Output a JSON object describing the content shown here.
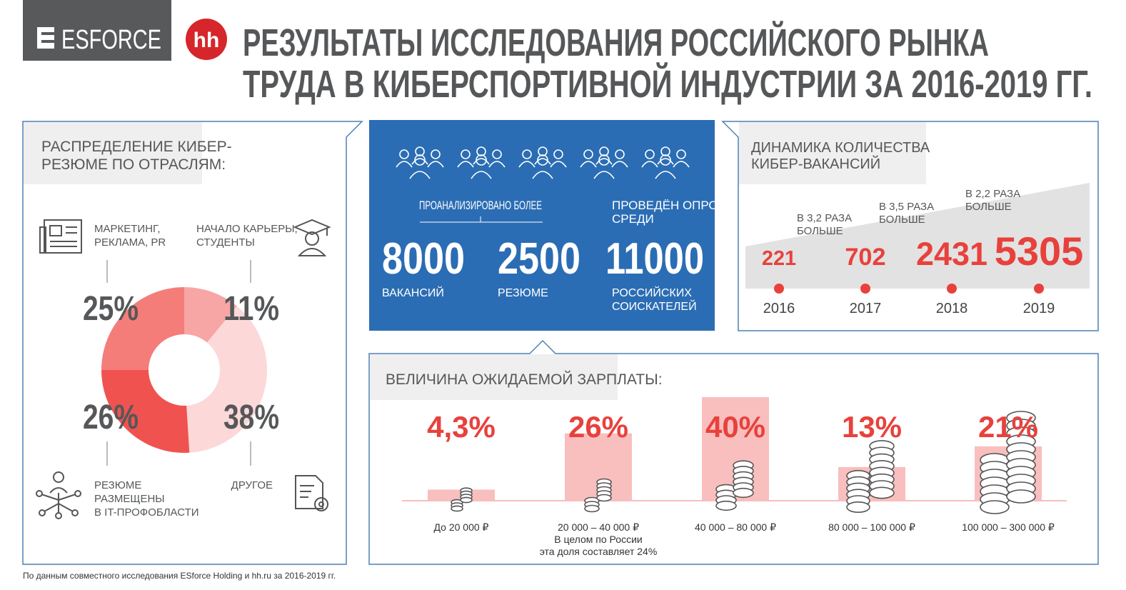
{
  "header": {
    "logo": "ESFORCE",
    "badge": "hh",
    "title": [
      "РЕЗУЛЬТАТЫ ИССЛЕДОВАНИЯ РОССИЙСКОГО РЫНКА",
      "ТРУДА В КИБЕРСПОРТИВНОЙ ИНДУСТРИИ ЗА 2016-2019 ГГ."
    ]
  },
  "summary": {
    "analyzed": "ПРОАНАЛИЗИРОВАНО БОЛЕЕ",
    "surveyed": [
      "ПРОВЕДЁН ОПРОС",
      "СРЕДИ"
    ],
    "stats": [
      {
        "value": 8000,
        "label": [
          "ВАКАНСИЙ"
        ]
      },
      {
        "value": 2500,
        "label": [
          "РЕЗЮМЕ"
        ]
      },
      {
        "value": 11000,
        "label": [
          "РОССИЙСКИХ",
          "СОИСКАТЕЛЕЙ"
        ]
      }
    ]
  },
  "chart_data": [
    {
      "type": "pie",
      "title": [
        "РАСПРЕДЕЛЕНИЕ КИБЕР-",
        "РЕЗЮМЕ ПО ОТРАСЛЯМ:"
      ],
      "categories": [
        [
          "НАЧАЛО КАРЬЕРЫ,",
          "СТУДЕНТЫ"
        ],
        [
          "ДРУГОЕ"
        ],
        [
          "РЕЗЮМЕ",
          "РАЗМЕЩЕНЫ",
          "В IT-ПРОФОБЛАСТИ"
        ],
        [
          "МАРКЕТИНГ,",
          "РЕКЛАМА, PR"
        ]
      ],
      "values": [
        11,
        38,
        26,
        25
      ],
      "value_labels": [
        "11%",
        "38%",
        "26%",
        "25%"
      ],
      "colors": [
        "#f7a5a5",
        "#fdd8d8",
        "#f0534f",
        "#f47d7a"
      ]
    },
    {
      "type": "timeline",
      "title": [
        "ДИНАМИКА КОЛИЧЕСТВА",
        "КИБЕР-ВАКАНСИЙ"
      ],
      "categories": [
        "2016",
        "2017",
        "2018",
        "2019"
      ],
      "values": [
        221,
        702,
        2431,
        5305
      ],
      "annotations": [
        [
          "В 3,2 РАЗА",
          "БОЛЬШЕ"
        ],
        [
          "В 3,5 РАЗА",
          "БОЛЬШЕ"
        ],
        [
          "В 2,2 РАЗА",
          "БОЛЬШЕ"
        ]
      ],
      "color": "#e8413c"
    },
    {
      "type": "bar",
      "title": "ВЕЛИЧИНА ОЖИДАЕМОЙ ЗАРПЛАТЫ:",
      "categories": [
        "До 20 000 ₽",
        "20 000 – 40 000 ₽",
        "40 000 – 80 000 ₽",
        "80 000 – 100 000 ₽",
        "100 000 – 300 000 ₽"
      ],
      "values": [
        4.3,
        26,
        40,
        13,
        21
      ],
      "value_labels": [
        "4,3%",
        "26%",
        "40%",
        "13%",
        "21%"
      ],
      "note": [
        "В целом по России",
        "эта доля составляет 24%"
      ],
      "color": "#f9bebe",
      "label_color": "#e8413c"
    }
  ],
  "footnote": "По данным совместного исследования ESforce Holding и hh.ru за 2016-2019 гг."
}
